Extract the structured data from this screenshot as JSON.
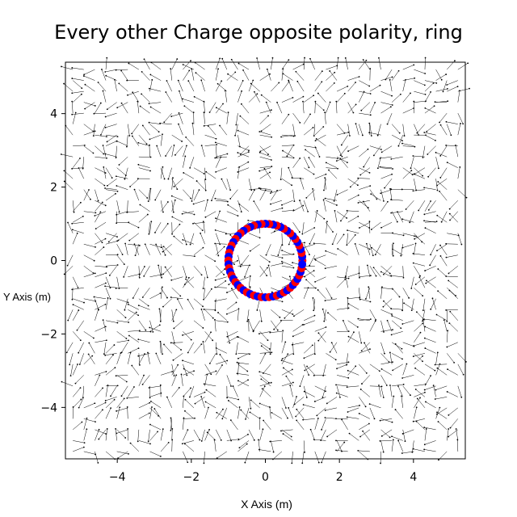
{
  "chart_data": {
    "type": "quiver",
    "title": "Every other Charge opposite polarity, ring",
    "xlabel": "X Axis (m)",
    "ylabel": "Y Axis (m)",
    "xlim": [
      -5.4,
      5.4
    ],
    "ylim": [
      -5.4,
      5.4
    ],
    "x_ticks": [
      -4,
      -2,
      0,
      2,
      4
    ],
    "y_ticks": [
      -4,
      -2,
      0,
      2,
      4
    ],
    "x_tick_labels": [
      "−4",
      "−2",
      "0",
      "2",
      "4"
    ],
    "y_tick_labels": [
      "−4",
      "−2",
      "0",
      "2",
      "4"
    ],
    "grid": false,
    "field": {
      "x_range": [
        -5.2,
        5.2
      ],
      "y_range": [
        -5.2,
        5.2
      ],
      "points_per_axis": 36,
      "color": "#000000"
    },
    "series": [
      {
        "ring_center": [
          0,
          0
        ],
        "ring_radius": 1.0,
        "charge_count": 60,
        "colors": [
          "#ff0000",
          "#0000ff"
        ]
      }
    ]
  }
}
